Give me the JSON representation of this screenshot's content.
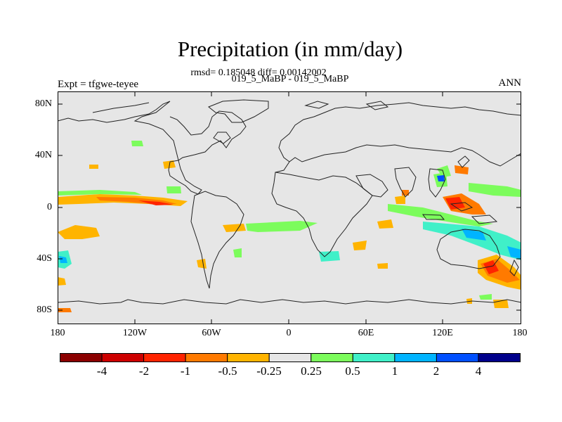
{
  "header": {
    "title": "Precipitation (in mm/day)",
    "stats": "rmsd= 0.185048 diff= 0.00142002",
    "cases": "019_5_MaBP - 019_5_MaBP",
    "expt_label": "Expt = tfgwe-teyee",
    "season": "ANN"
  },
  "map": {
    "lat_ticks": [
      "80N",
      "40N",
      "0",
      "40S",
      "80S"
    ],
    "lon_ticks": [
      "180",
      "120W",
      "60W",
      "0",
      "60E",
      "120E",
      "180"
    ],
    "background_color": "#e6e6e6"
  },
  "colorbar": {
    "labels": [
      "-4",
      "-2",
      "-1",
      "-0.5",
      "-0.25",
      "0.25",
      "0.5",
      "1",
      "2",
      "4"
    ],
    "colors": [
      "#8b0000",
      "#cd0000",
      "#ff2400",
      "#ff7a00",
      "#ffb400",
      "#e6e6e6",
      "#7cfc5c",
      "#40f0c8",
      "#00b4ff",
      "#0050ff",
      "#00008b"
    ]
  }
}
